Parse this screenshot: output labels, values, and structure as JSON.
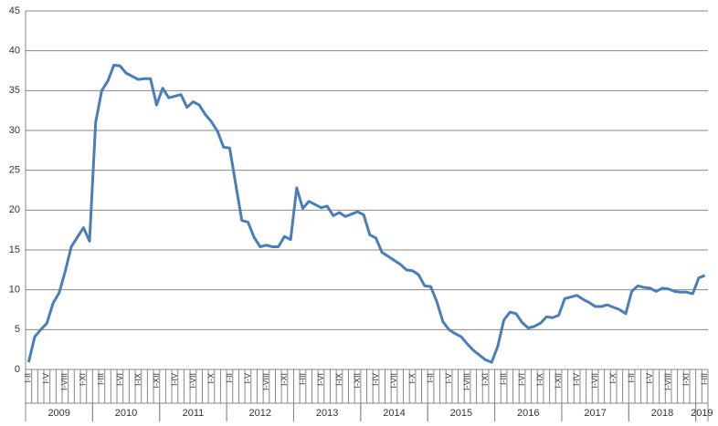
{
  "chart_data": {
    "type": "line",
    "categories": [
      "I-II",
      null,
      null,
      "I-V",
      null,
      null,
      "I-VIII",
      null,
      null,
      "I-XI",
      null,
      null,
      "I-III",
      null,
      null,
      "I-VI",
      null,
      null,
      "I-IX",
      null,
      null,
      "I-XII",
      null,
      null,
      "I-IV",
      null,
      null,
      "I-VII",
      null,
      null,
      "I-X",
      null,
      null,
      "I-II",
      null,
      null,
      "I-V",
      null,
      null,
      "I-VIII",
      null,
      null,
      "I-XI",
      null,
      null,
      "I-III",
      null,
      null,
      "I-VI",
      null,
      null,
      "I-IX",
      null,
      null,
      "I-XII",
      null,
      null,
      "I-IV",
      null,
      null,
      "I-VII",
      null,
      null,
      "I-X",
      null,
      null,
      "I-II",
      null,
      null,
      "I-V",
      null,
      null,
      "I-VIII",
      null,
      null,
      "I-XI",
      null,
      null,
      "I-III",
      null,
      null,
      "I-VI",
      null,
      null,
      "I-IX",
      null,
      null,
      "I-XII",
      null,
      null,
      "I-IV",
      null,
      null,
      "I-VII",
      null,
      null,
      "I-X",
      null,
      null,
      "I-II",
      null,
      null,
      "I-V",
      null,
      null,
      "I-VIII",
      null,
      null,
      "I-XI",
      null,
      null,
      "I-III"
    ],
    "x_groups": [
      {
        "label": "2009",
        "size": 11
      },
      {
        "label": "2010",
        "size": 11
      },
      {
        "label": "2011",
        "size": 11
      },
      {
        "label": "2012",
        "size": 11
      },
      {
        "label": "2013",
        "size": 11
      },
      {
        "label": "2014",
        "size": 11
      },
      {
        "label": "2015",
        "size": 11
      },
      {
        "label": "2016",
        "size": 11
      },
      {
        "label": "2017",
        "size": 11
      },
      {
        "label": "2018",
        "size": 11
      },
      {
        "label": "2019",
        "size": 2
      }
    ],
    "series": [
      {
        "color": "#4a7ebb",
        "values": [
          0.9,
          4.1,
          5.0,
          5.8,
          8.3,
          9.6,
          12.3,
          15.4,
          16.6,
          17.8,
          16.1,
          31.0,
          35.0,
          36.2,
          38.2,
          38.1,
          37.2,
          36.8,
          36.4,
          36.5,
          36.5,
          33.2,
          35.3,
          34.1,
          34.3,
          34.5,
          32.9,
          33.6,
          33.2,
          32.0,
          31.1,
          29.9,
          27.9,
          27.8,
          23.2,
          18.7,
          18.5,
          16.6,
          15.4,
          15.6,
          15.4,
          15.4,
          16.7,
          16.3,
          22.8,
          20.2,
          21.1,
          20.7,
          20.3,
          20.5,
          19.3,
          19.7,
          19.2,
          19.5,
          19.8,
          19.4,
          16.9,
          16.5,
          14.7,
          14.2,
          13.7,
          13.2,
          12.5,
          12.4,
          11.9,
          10.5,
          10.4,
          8.5,
          6.0,
          5.0,
          4.5,
          4.1,
          3.2,
          2.4,
          1.8,
          1.2,
          0.9,
          2.9,
          6.2,
          7.2,
          7.0,
          5.9,
          5.2,
          5.4,
          5.8,
          6.6,
          6.5,
          6.8,
          8.9,
          9.1,
          9.3,
          8.8,
          8.4,
          7.9,
          7.9,
          8.1,
          7.8,
          7.5,
          7.0,
          9.8,
          10.5,
          10.3,
          10.2,
          9.8,
          10.2,
          10.1,
          9.8,
          9.7,
          9.7,
          9.5,
          11.5,
          11.8
        ]
      }
    ],
    "ylim": [
      0,
      45
    ],
    "yticks": [
      0,
      5,
      10,
      15,
      20,
      25,
      30,
      35,
      40,
      45
    ],
    "grid": true
  }
}
